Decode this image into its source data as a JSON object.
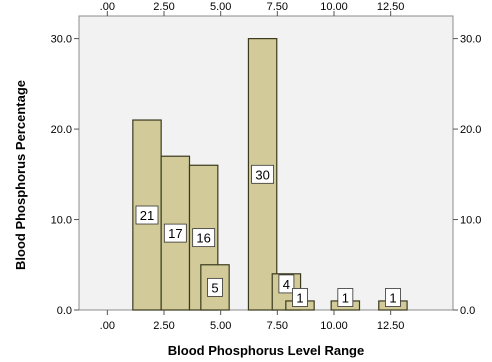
{
  "chart_data": {
    "type": "bar",
    "title": "",
    "xlabel": "Blood Phosphorus Level Range",
    "ylabel": "Blood Phosphorus Percentage",
    "xlim": [
      -1.25,
      15.25
    ],
    "ylim": [
      0,
      32.5
    ],
    "x_ticks": [
      0,
      2.5,
      5,
      7.5,
      10,
      12.5
    ],
    "x_tick_labels": [
      ".00",
      "2.50",
      "5.00",
      "7.50",
      "10.00",
      "12.50"
    ],
    "y_ticks": [
      0,
      10,
      20,
      30
    ],
    "y_tick_labels": [
      "0.0",
      "10.0",
      "20.0",
      "30.0"
    ],
    "bar_width": 1.25,
    "bars": [
      {
        "x": 1.75,
        "value": 21,
        "label": "21"
      },
      {
        "x": 3.0,
        "value": 17,
        "label": "17"
      },
      {
        "x": 4.25,
        "value": 16,
        "label": "16"
      },
      {
        "x": 4.75,
        "value": 5,
        "label": "5"
      },
      {
        "x": 6.85,
        "value": 30,
        "label": "30"
      },
      {
        "x": 7.9,
        "value": 4,
        "label": "4"
      },
      {
        "x": 8.5,
        "value": 1,
        "label": "1"
      },
      {
        "x": 10.5,
        "value": 1,
        "label": "1"
      },
      {
        "x": 12.6,
        "value": 1,
        "label": "1"
      }
    ],
    "grid": false,
    "legend": "none",
    "colors": {
      "plot_background": "#f2f2f2",
      "bar_fill": "#d2ca98",
      "bar_stroke": "#3a3a1e",
      "label_box": "#ffffff"
    }
  }
}
